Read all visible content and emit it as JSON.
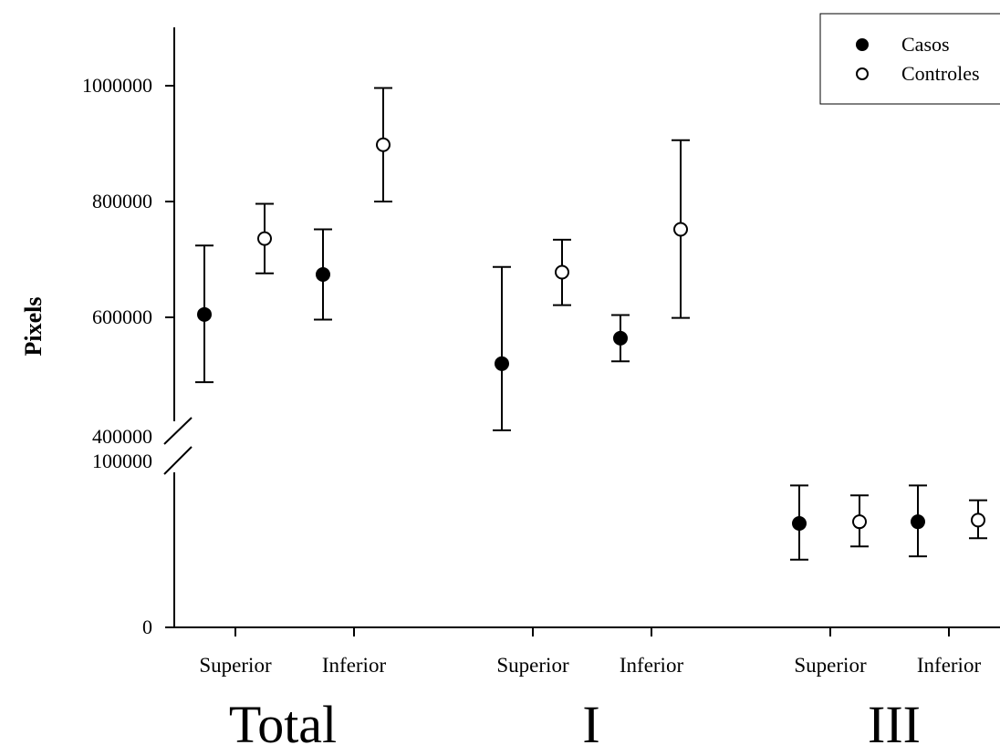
{
  "chart_data": {
    "type": "scatter",
    "ylabel": "Pixels",
    "y_axis_break": {
      "lower_segment_max": 100000,
      "upper_segment_min": 400000
    },
    "ylim_lower": [
      0,
      100000
    ],
    "ylim_upper": [
      400000,
      1100000
    ],
    "yticks_lower": [
      0,
      100000
    ],
    "yticks_upper": [
      400000,
      600000,
      800000,
      1000000
    ],
    "ytick_labels_lower": [
      "0",
      "100000"
    ],
    "ytick_labels_upper": [
      "400000",
      "600000",
      "800000",
      "1000000"
    ],
    "legend": {
      "position": "top-right",
      "entries": [
        "Casos",
        "Controles"
      ]
    },
    "groups": [
      {
        "label": "Total",
        "categories": [
          {
            "label": "Superior",
            "points": [
              {
                "series": "Casos",
                "value": 605000,
                "err_low": 488000,
                "err_high": 724000
              },
              {
                "series": "Controles",
                "value": 736000,
                "err_low": 676000,
                "err_high": 796000
              }
            ]
          },
          {
            "label": "Inferior",
            "points": [
              {
                "series": "Casos",
                "value": 674000,
                "err_low": 596000,
                "err_high": 752000
              },
              {
                "series": "Controles",
                "value": 898000,
                "err_low": 800000,
                "err_high": 996000
              }
            ]
          }
        ]
      },
      {
        "label": "I",
        "categories": [
          {
            "label": "Superior",
            "points": [
              {
                "series": "Casos",
                "value": 520000,
                "err_low": 405000,
                "err_high": 687000
              },
              {
                "series": "Controles",
                "value": 678000,
                "err_low": 621000,
                "err_high": 734000
              }
            ]
          },
          {
            "label": "Inferior",
            "points": [
              {
                "series": "Casos",
                "value": 564000,
                "err_low": 524000,
                "err_high": 604000
              },
              {
                "series": "Controles",
                "value": 752000,
                "err_low": 599000,
                "err_high": 906000
              }
            ]
          }
        ]
      },
      {
        "label": "III",
        "categories": [
          {
            "label": "Superior",
            "points": [
              {
                "series": "Casos",
                "value": 63000,
                "err_low": 41000,
                "err_high": 86000
              },
              {
                "series": "Controles",
                "value": 64000,
                "err_low": 49000,
                "err_high": 80000
              }
            ]
          },
          {
            "label": "Inferior",
            "points": [
              {
                "series": "Casos",
                "value": 64000,
                "err_low": 43000,
                "err_high": 86000
              },
              {
                "series": "Controles",
                "value": 65000,
                "err_low": 54000,
                "err_high": 77000
              }
            ]
          }
        ]
      }
    ],
    "series_styles": {
      "Casos": "#000000",
      "Controles": "#ffffff"
    },
    "grid": false
  }
}
